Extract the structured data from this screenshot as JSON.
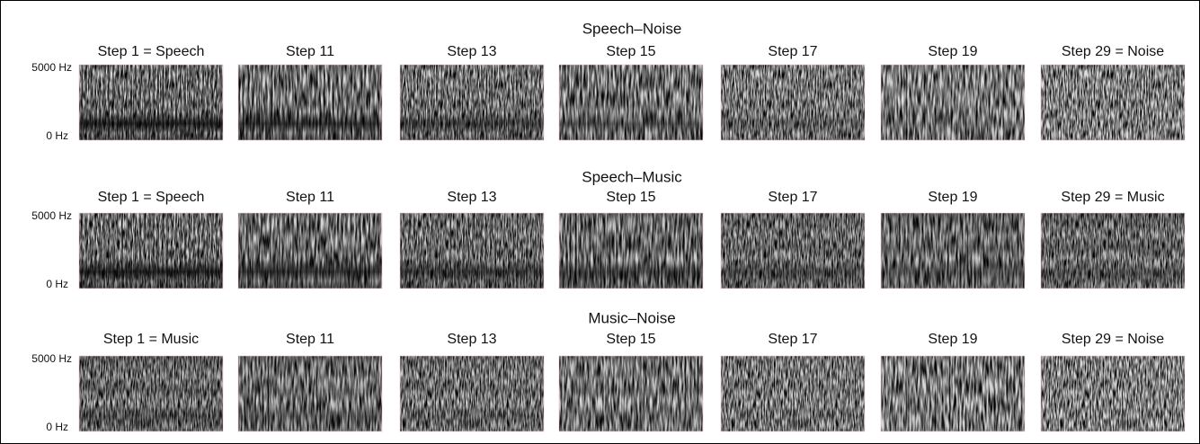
{
  "rows": [
    {
      "title": "Speech–Noise",
      "y_top": "5000 Hz",
      "y_bottom": "0 Hz",
      "panels": [
        "Step 1 = Speech",
        "Step 11",
        "Step 13",
        "Step 15",
        "Step 17",
        "Step 19",
        "Step 29 = Noise"
      ]
    },
    {
      "title": "Speech–Music",
      "y_top": "5000 Hz",
      "y_bottom": "0 Hz",
      "panels": [
        "Step 1 = Speech",
        "Step 11",
        "Step 13",
        "Step 15",
        "Step 17",
        "Step 19",
        "Step 29 = Music"
      ]
    },
    {
      "title": "Music–Noise",
      "y_top": "5000 Hz",
      "y_bottom": "0 Hz",
      "panels": [
        "Step 1 = Music",
        "Step 11",
        "Step 13",
        "Step 15",
        "Step 17",
        "Step 19",
        "Step 29 = Noise"
      ]
    }
  ]
}
